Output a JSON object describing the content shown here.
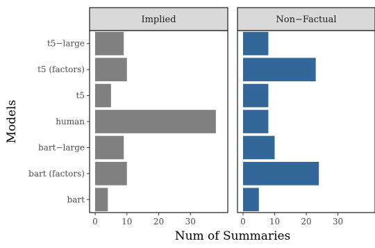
{
  "chart_data": {
    "type": "bar",
    "orientation": "horizontal",
    "xlabel": "Num of Summaries",
    "ylabel": "Models",
    "categories": [
      "bart",
      "bart (factors)",
      "bart−large",
      "human",
      "t5",
      "t5 (factors)",
      "t5−large"
    ],
    "xlim": [
      0,
      40
    ],
    "xticks": [
      "0",
      "10",
      "20",
      "30"
    ],
    "grid": false,
    "legend": "none",
    "panels": [
      {
        "title": "Implied",
        "color": "#808080",
        "values": [
          4,
          10,
          9,
          38,
          5,
          10,
          9
        ]
      },
      {
        "title": "Non−Factual",
        "color": "#336699",
        "values": [
          5,
          24,
          10,
          8,
          8,
          23,
          8
        ]
      }
    ]
  }
}
